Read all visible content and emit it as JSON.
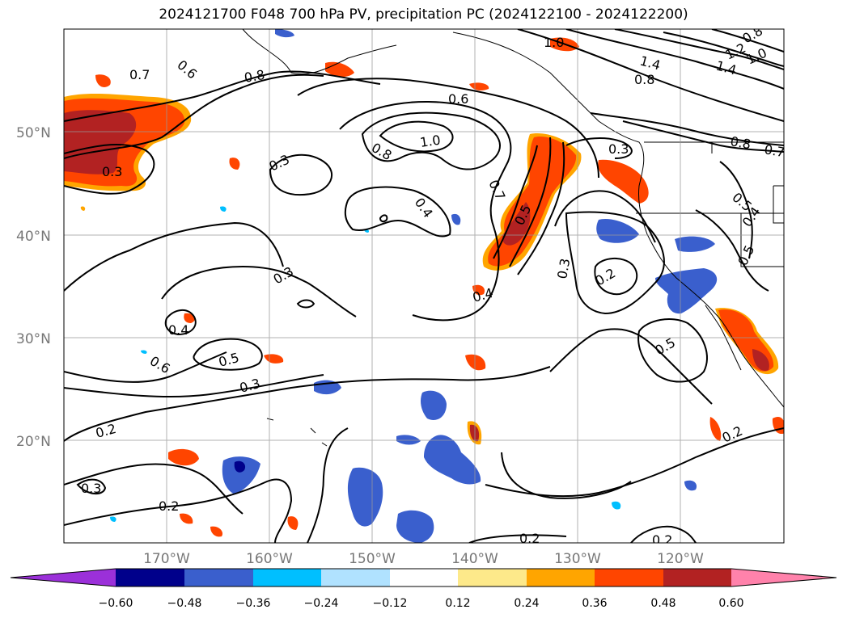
{
  "title": "2024121700 F048 700 hPa PV, precipitation PC (2024122100 - 2024122200)",
  "map": {
    "lat_labels": [
      "50°N",
      "40°N",
      "30°N",
      "20°N"
    ],
    "lon_labels": [
      "170°W",
      "160°W",
      "150°W",
      "140°W",
      "130°W",
      "120°W"
    ]
  },
  "contour_labels": [
    "0.7",
    "0.6",
    "0.8",
    "1.0",
    "0.6",
    "0.8",
    "1.0",
    "1.4",
    "1.4",
    "0.8",
    "1.2",
    "1.0",
    "0.8",
    "0.3",
    "0.3",
    "0.4",
    "0.7",
    "0.5",
    "0.3",
    "0.3",
    "0.4",
    "0.3",
    "0.2",
    "0.5",
    "0.5",
    "0.7",
    "0.5",
    "0.4",
    "0.4",
    "0.5",
    "0.3",
    "0.2",
    "0.3",
    "0.2",
    "0.2",
    "0.2",
    "0.2",
    "0.8",
    "0.6"
  ],
  "colorbar": {
    "ticks": [
      "−0.60",
      "−0.48",
      "−0.36",
      "−0.24",
      "−0.12",
      "0.12",
      "0.24",
      "0.36",
      "0.48",
      "0.60"
    ],
    "colors": [
      "#9b30d9",
      "#00008b",
      "#3a5fcd",
      "#00bfff",
      "#b0e2ff",
      "#ffffff",
      "#fde98a",
      "#ffa500",
      "#ff4500",
      "#b22222",
      "#ff82ab"
    ]
  },
  "fill_colors": {
    "red": "#ff4500",
    "darkred": "#b22222",
    "orange": "#ffa500",
    "yellow": "#fde98a",
    "blue": "#3a5fcd",
    "cyan": "#00bfff",
    "navy": "#00008b"
  }
}
